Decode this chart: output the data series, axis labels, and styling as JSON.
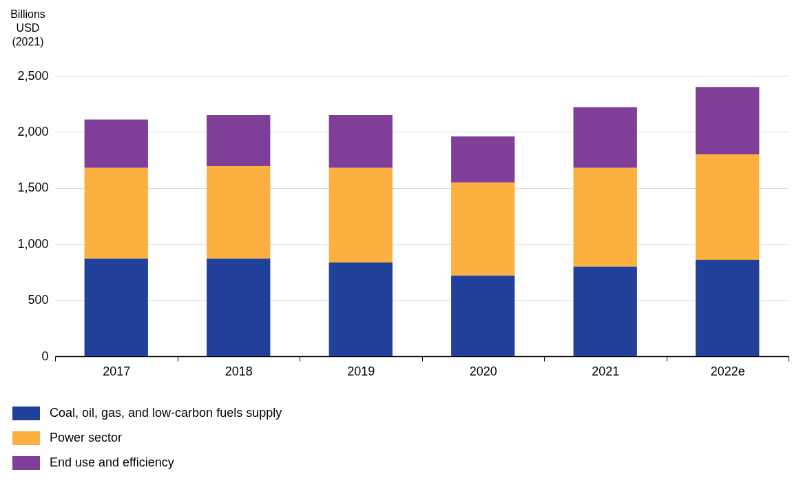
{
  "chart_data": {
    "type": "bar",
    "stacked": true,
    "ylabel": "Billions\nUSD\n(2021)",
    "categories": [
      "2017",
      "2018",
      "2019",
      "2020",
      "2021",
      "2022e"
    ],
    "series": [
      {
        "name": "Coal, oil, gas, and low-carbon fuels supply",
        "color": "#21409a",
        "values": [
          870,
          870,
          835,
          720,
          800,
          860
        ]
      },
      {
        "name": "Power sector",
        "color": "#fbb040",
        "values": [
          810,
          825,
          845,
          830,
          880,
          940
        ]
      },
      {
        "name": "End use and efficiency",
        "color": "#7f3f98",
        "values": [
          430,
          455,
          470,
          410,
          540,
          600
        ]
      }
    ],
    "ylim": [
      0,
      2500
    ],
    "yticks": [
      0,
      500,
      {
        "value": 1000,
        "label": "1,000"
      },
      {
        "value": 1500,
        "label": "1,500"
      },
      {
        "value": 2000,
        "label": "2,000"
      },
      {
        "value": 2500,
        "label": "2,500"
      }
    ],
    "grid": "y",
    "legend": "bottom left"
  }
}
